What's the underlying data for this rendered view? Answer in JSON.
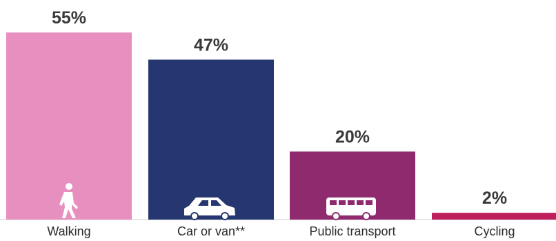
{
  "chart_data": {
    "type": "bar",
    "categories": [
      "Walking",
      "Car or van**",
      "Public transport",
      "Cycling"
    ],
    "values": [
      55,
      47,
      20,
      2
    ],
    "value_labels": [
      "55%",
      "47%",
      "20%",
      "2%"
    ],
    "ylim": [
      0,
      55
    ],
    "colors": [
      "#e78fbe",
      "#253670",
      "#8e2a6d",
      "#bf1f5c"
    ],
    "icons": [
      "walking-person-icon",
      "car-icon",
      "bus-icon",
      ""
    ],
    "grid": false,
    "legend": "none"
  }
}
